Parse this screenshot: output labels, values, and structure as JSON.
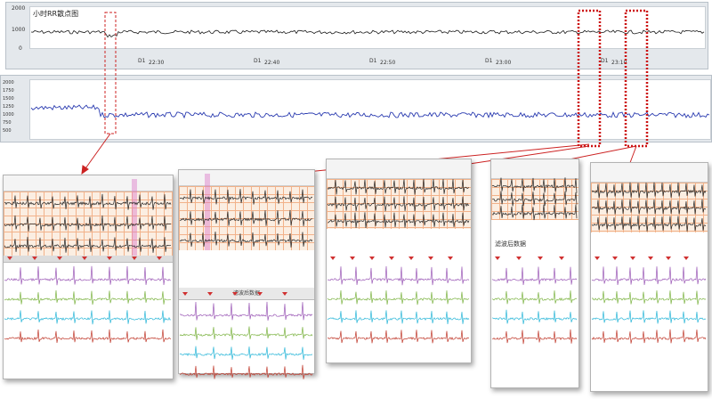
{
  "top_panel": {
    "title": "小时RR散点图",
    "y_ticks": [
      "2000",
      "1000",
      "0"
    ],
    "time_ticks": [
      {
        "day": "D1",
        "time": "22:30"
      },
      {
        "day": "D1",
        "time": "22:40"
      },
      {
        "day": "D1",
        "time": "22:50"
      },
      {
        "day": "D1",
        "time": "23:00"
      },
      {
        "day": "D1",
        "time": "23:10"
      }
    ]
  },
  "trend_panel": {
    "y_ticks": [
      "2000",
      "1750",
      "1500",
      "1250",
      "1000",
      "750",
      "500"
    ]
  },
  "crops": {
    "filtered_label": "滤波后数据"
  },
  "colors": {
    "highlight_red": "#cc2222",
    "trend_blue": "#2a3bb0",
    "lead_purple": "#9b59b6",
    "lead_green": "#7cb342",
    "lead_cyan": "#29b6d8",
    "lead_red": "#c0392b",
    "grid": "#f2b28a"
  }
}
